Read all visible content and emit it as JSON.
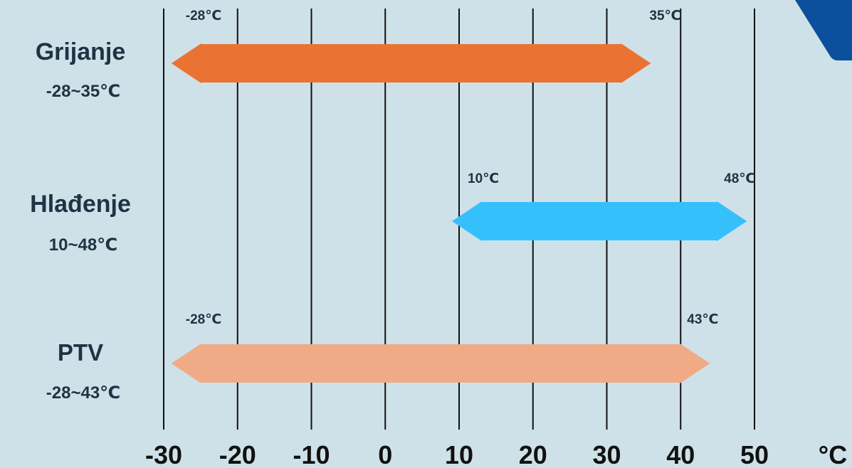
{
  "chart_data": {
    "type": "range",
    "xlim": [
      -30,
      50
    ],
    "x_ticks": [
      "-30",
      "-20",
      "-10",
      "0",
      "10",
      "20",
      "30",
      "40",
      "50"
    ],
    "x_unit": "°C",
    "grid": true,
    "series": [
      {
        "name": "Grijanje",
        "range_text": "-28~35℃",
        "min": -28,
        "max": 35,
        "min_label": "-28℃",
        "max_label": "35℃",
        "color": "#ea7334"
      },
      {
        "name": "Hlađenje",
        "range_text": "10~48℃",
        "min": 10,
        "max": 48,
        "min_label": "10℃",
        "max_label": "48℃",
        "color": "#35c0fc"
      },
      {
        "name": "PTV",
        "range_text": "-28~43℃",
        "min": -28,
        "max": 43,
        "min_label": "-28℃",
        "max_label": "43℃",
        "color": "#f1aa86"
      }
    ]
  },
  "decor": {
    "corner_color": "#0c4f9c"
  }
}
